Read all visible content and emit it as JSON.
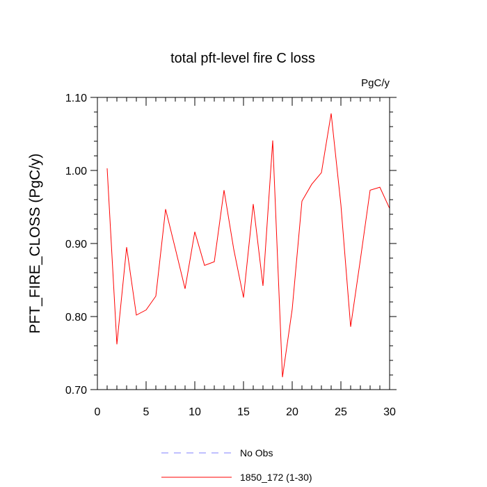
{
  "chart_data": {
    "type": "line",
    "title": "total pft-level fire C loss",
    "units_label": "PgC/y",
    "xlabel": "",
    "ylabel": "PFT_FIRE_CLOSS  (PgC/y)",
    "xlim": [
      0,
      30
    ],
    "ylim": [
      0.7,
      1.1
    ],
    "x_ticks": [
      0,
      5,
      10,
      15,
      20,
      25,
      30
    ],
    "x_tick_labels": [
      "0",
      "5",
      "10",
      "15",
      "20",
      "25",
      "30"
    ],
    "y_ticks": [
      0.7,
      0.8,
      0.9,
      1.0,
      1.1
    ],
    "y_tick_labels": [
      "0.70",
      "0.80",
      "0.90",
      "1.00",
      "1.10"
    ],
    "grid": false,
    "legend_position": "bottom",
    "series": [
      {
        "name": "1850_172 (1-30)",
        "color": "#ff0000",
        "style": "solid",
        "x": [
          1,
          2,
          3,
          4,
          5,
          6,
          7,
          8,
          9,
          10,
          11,
          12,
          13,
          14,
          15,
          16,
          17,
          18,
          19,
          20,
          21,
          22,
          23,
          24,
          25,
          26,
          27,
          28,
          29,
          30
        ],
        "y": [
          1.003,
          0.762,
          0.895,
          0.802,
          0.809,
          0.828,
          0.947,
          0.893,
          0.838,
          0.916,
          0.87,
          0.875,
          0.973,
          0.892,
          0.826,
          0.954,
          0.842,
          1.041,
          0.717,
          0.81,
          0.958,
          0.981,
          0.997,
          1.078,
          0.953,
          0.786,
          0.878,
          0.973,
          0.977,
          0.948
        ]
      }
    ],
    "legend": [
      {
        "label": "No Obs",
        "color": "#8080ff",
        "style": "dashed"
      },
      {
        "label": "1850_172 (1-30)",
        "color": "#ff0000",
        "style": "solid"
      }
    ]
  }
}
